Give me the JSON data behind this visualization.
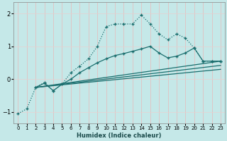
{
  "xlabel": "Humidex (Indice chaleur)",
  "bg_color": "#c5e8e8",
  "grid_color": "#d8f0f0",
  "line_color": "#1a6e6e",
  "xlim": [
    -0.5,
    23.5
  ],
  "ylim": [
    -1.35,
    2.35
  ],
  "yticks": [
    -1,
    0,
    1,
    2
  ],
  "xticks": [
    0,
    1,
    2,
    3,
    4,
    5,
    6,
    7,
    8,
    9,
    10,
    11,
    12,
    13,
    14,
    15,
    16,
    17,
    18,
    19,
    20,
    21,
    22,
    23
  ],
  "line1_x": [
    0,
    1,
    2,
    3,
    4,
    5,
    6,
    7,
    8,
    9,
    10,
    11,
    12,
    13,
    14,
    15,
    16,
    17,
    18,
    19,
    20,
    21,
    22,
    23
  ],
  "line1_y": [
    -1.05,
    -0.9,
    -0.25,
    -0.1,
    -0.35,
    -0.15,
    0.2,
    0.4,
    0.62,
    1.0,
    1.6,
    1.68,
    1.68,
    1.68,
    1.95,
    1.68,
    1.38,
    1.2,
    1.38,
    1.25,
    0.95,
    0.55,
    0.55,
    0.55
  ],
  "line2_x": [
    2,
    3,
    4,
    5,
    6,
    7,
    8,
    9,
    10,
    11,
    12,
    13,
    14,
    15,
    16,
    17,
    18,
    19,
    20,
    21,
    22,
    23
  ],
  "line2_y": [
    -0.25,
    -0.12,
    -0.35,
    -0.15,
    0.0,
    0.2,
    0.35,
    0.5,
    0.62,
    0.72,
    0.78,
    0.85,
    0.92,
    1.0,
    0.8,
    0.65,
    0.7,
    0.8,
    0.95,
    0.55,
    0.55,
    0.55
  ],
  "line3_x": [
    2,
    23
  ],
  "line3_y": [
    -0.25,
    0.55
  ],
  "line4_x": [
    2,
    23
  ],
  "line4_y": [
    -0.25,
    0.42
  ],
  "line5_x": [
    2,
    23
  ],
  "line5_y": [
    -0.25,
    0.3
  ]
}
